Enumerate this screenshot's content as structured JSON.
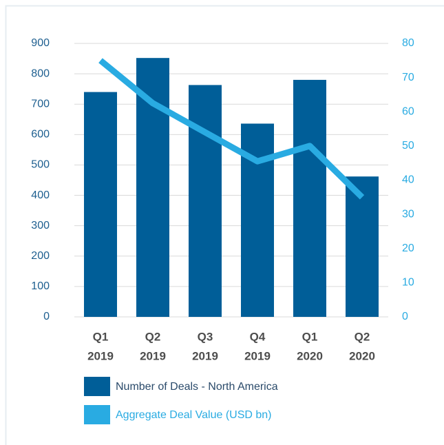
{
  "chart_data": {
    "type": "bar_line",
    "categories": [
      [
        "Q1",
        "2019"
      ],
      [
        "Q2",
        "2019"
      ],
      [
        "Q3",
        "2019"
      ],
      [
        "Q4",
        "2019"
      ],
      [
        "Q1",
        "2020"
      ],
      [
        "Q2",
        "2020"
      ]
    ],
    "series": [
      {
        "name": "Number of Deals - North America",
        "color": "#005e98",
        "type": "bar",
        "values": [
          740,
          852,
          763,
          636,
          780,
          462
        ]
      },
      {
        "name": "Aggregate Deal Value (USD bn)",
        "color": "#29abe2",
        "type": "line",
        "axis": "y2",
        "values": [
          75,
          62.5,
          54,
          45.5,
          50,
          35
        ]
      }
    ],
    "ylim": [
      0,
      900
    ],
    "yticks": [
      0,
      100,
      200,
      300,
      400,
      500,
      600,
      700,
      800,
      900
    ],
    "y2lim": [
      0,
      80
    ],
    "y2ticks": [
      0,
      10,
      20,
      30,
      40,
      50,
      60,
      70,
      80
    ],
    "grid": true
  }
}
